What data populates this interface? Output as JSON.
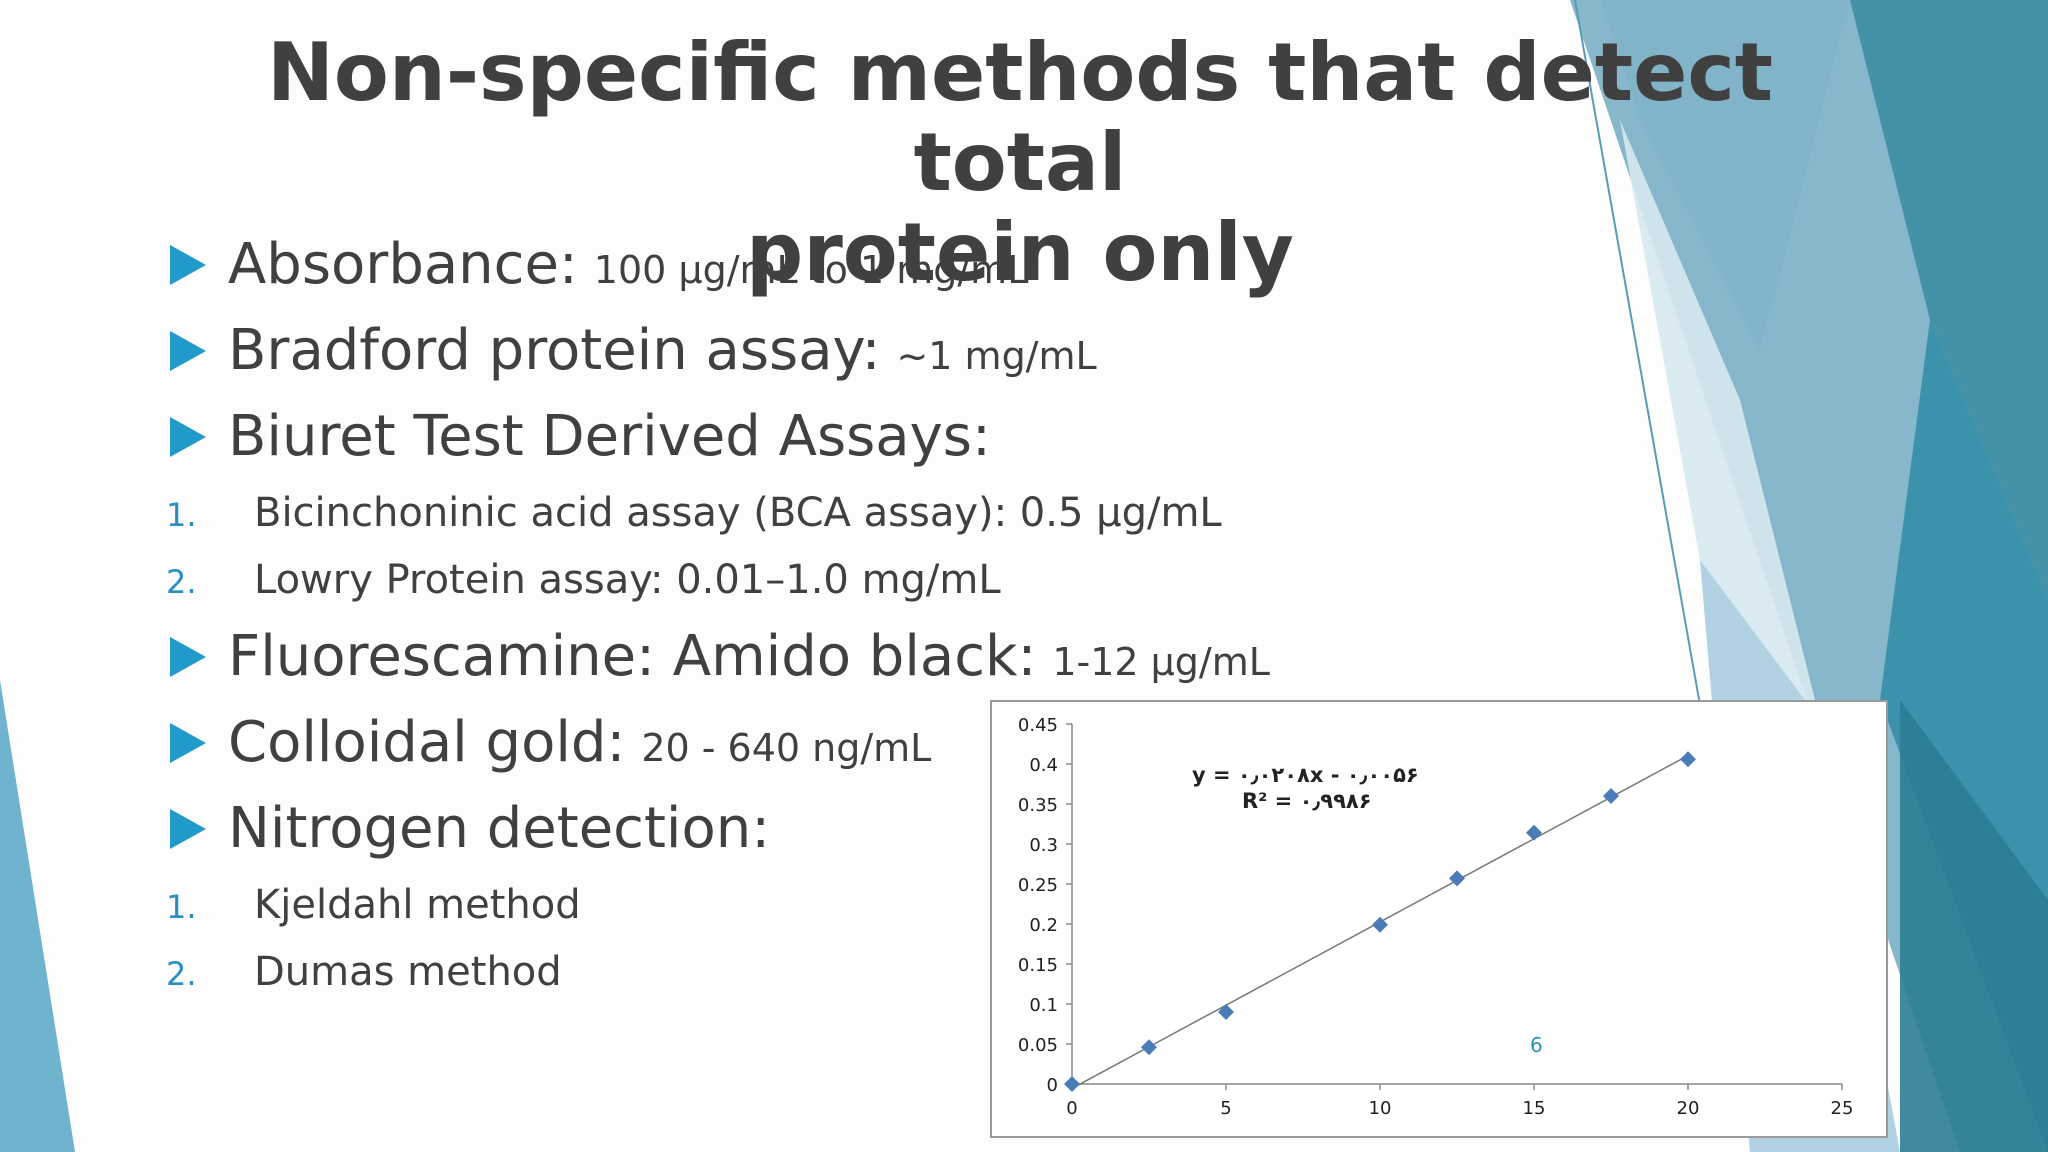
{
  "slide": {
    "title_line1": "Non-specific methods that detect total",
    "title_line2": "protein only",
    "bullets": [
      {
        "main": "Absorbance:",
        "sub": "100 μg/mL to 1 mg/mL"
      },
      {
        "main": "Bradford protein assay:",
        "sub": "~1 mg/mL"
      },
      {
        "main": "Biuret Test Derived Assays:",
        "sub": ""
      },
      {
        "main": "Fluorescamine: Amido black:",
        "sub": "1-12 μg/mL"
      },
      {
        "main": "Colloidal gold:",
        "sub": "20 - 640 ng/mL"
      },
      {
        "main": "Nitrogen detection:",
        "sub": ""
      }
    ],
    "biuret_items": [
      {
        "num": "1.",
        "text": "Bicinchoninic acid assay (BCA assay): 0.5 μg/mL"
      },
      {
        "num": "2.",
        "text": "Lowry Protein assay: 0.01–1.0 mg/mL"
      }
    ],
    "nitrogen_items": [
      {
        "num": "1.",
        "text": "Kjeldahl method"
      },
      {
        "num": "2.",
        "text": "Dumas method"
      }
    ],
    "slide_number": "6",
    "colors": {
      "bullet": "#1f9ac9",
      "text": "#404040",
      "marker": "#4a7db8"
    }
  },
  "chart_data": {
    "type": "scatter",
    "x": [
      0,
      2.5,
      5,
      10,
      12.5,
      15,
      17.5,
      20
    ],
    "y": [
      0,
      0.046,
      0.09,
      0.199,
      0.257,
      0.314,
      0.36,
      0.406
    ],
    "trendline": "linear",
    "equation": "y = ۰٫۰۲۰۸x - ۰٫۰۰۵۶",
    "r_squared": "R² = ۰٫۹۹۸۶",
    "xlim": [
      0,
      25
    ],
    "ylim": [
      0,
      0.45
    ],
    "x_ticks": [
      "0",
      "5",
      "10",
      "15",
      "20",
      "25"
    ],
    "y_ticks": [
      "0",
      "0.05",
      "0.1",
      "0.15",
      "0.2",
      "0.25",
      "0.3",
      "0.35",
      "0.4",
      "0.45"
    ],
    "grid": false,
    "legend": "none"
  }
}
